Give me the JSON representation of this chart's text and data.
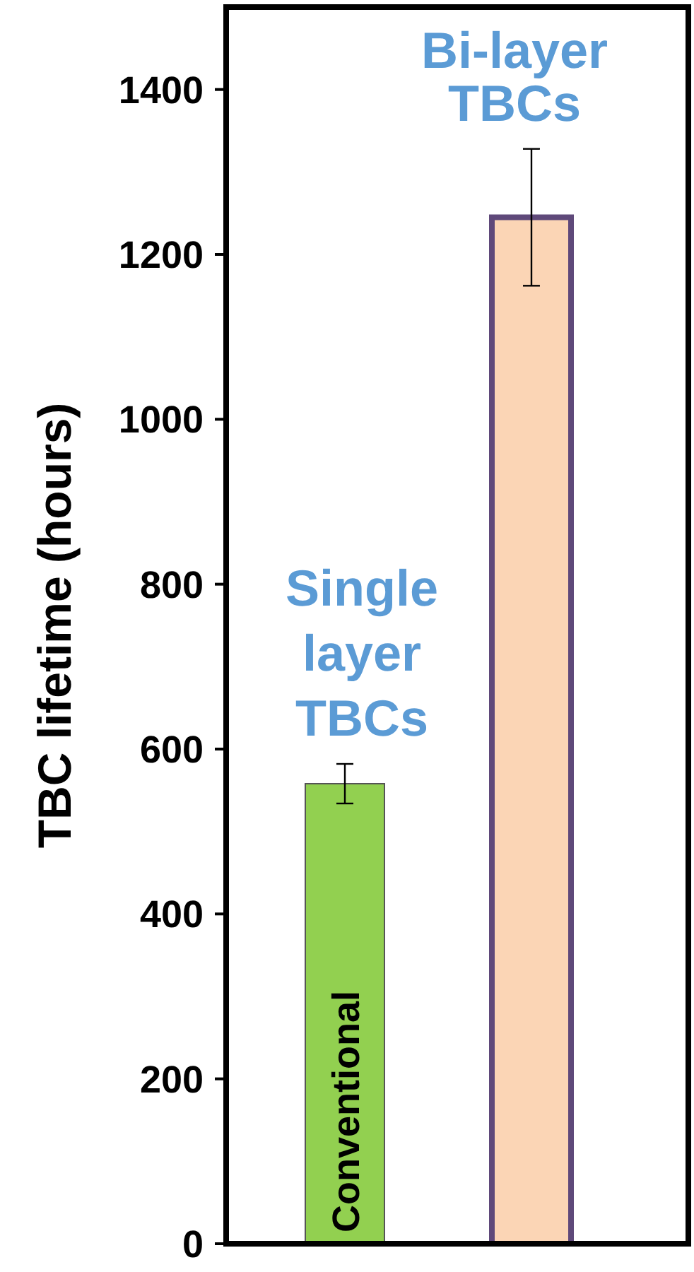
{
  "chart_data": {
    "type": "bar",
    "ylabel": "TBC lifetime (hours)",
    "categories": [
      "Conventional",
      null
    ],
    "values": [
      558,
      1245
    ],
    "colors": [
      "#92d050",
      "#fbd5b5"
    ],
    "errors": [
      24,
      83
    ],
    "ylim": [
      0,
      1500
    ],
    "yticks": [
      0,
      200,
      400,
      600,
      800,
      1000,
      1200,
      1400
    ],
    "annotations": [
      "Single layer TBCs",
      "Bi-layer TBCs"
    ],
    "grid": false
  }
}
